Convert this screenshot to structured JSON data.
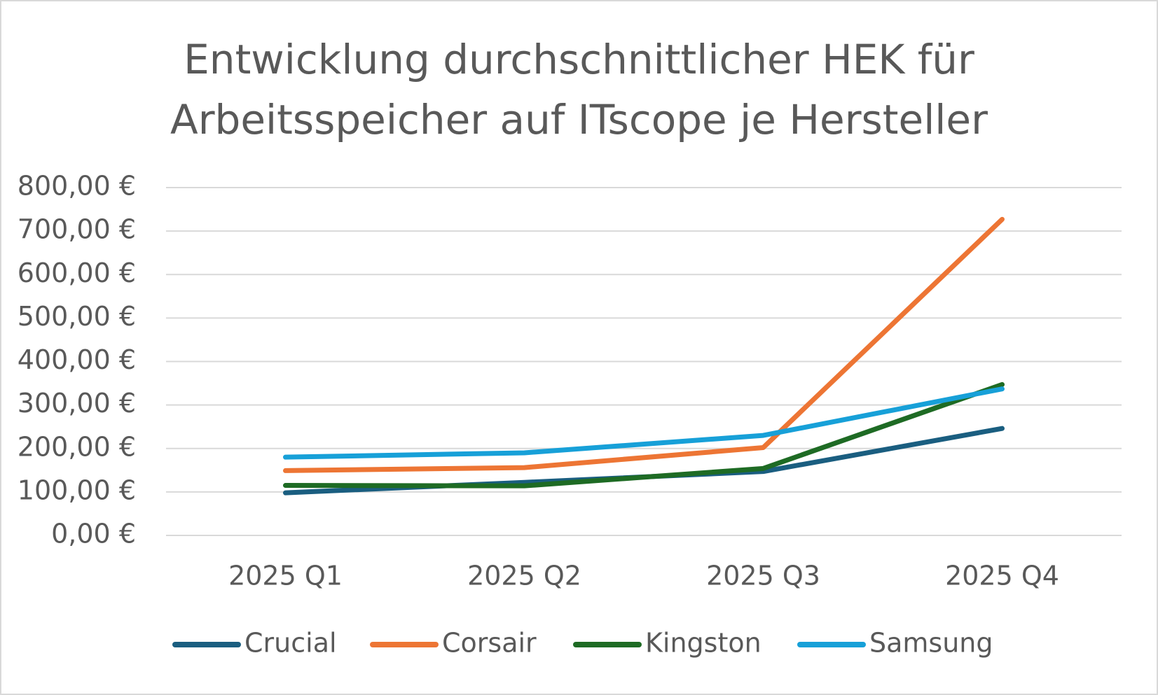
{
  "chart_data": {
    "type": "line",
    "title": "Entwicklung durchschnittlicher HEK für Arbeitsspeicher auf ITscope je Hersteller",
    "categories": [
      "2025 Q1",
      "2025 Q2",
      "2025 Q3",
      "2025 Q4"
    ],
    "series": [
      {
        "name": "Crucial",
        "color": "#1a5e80",
        "values": [
          98,
          122,
          147,
          246
        ]
      },
      {
        "name": "Corsair",
        "color": "#ed7534",
        "values": [
          149,
          156,
          202,
          727
        ]
      },
      {
        "name": "Kingston",
        "color": "#1e6b24",
        "values": [
          115,
          114,
          154,
          347
        ]
      },
      {
        "name": "Samsung",
        "color": "#17a0d8",
        "values": [
          180,
          190,
          230,
          337
        ]
      }
    ],
    "ylim": [
      0,
      800
    ],
    "yticks": [
      {
        "value": 0,
        "label": "0,00 €"
      },
      {
        "value": 100,
        "label": "100,00 €"
      },
      {
        "value": 200,
        "label": "200,00 €"
      },
      {
        "value": 300,
        "label": "300,00 €"
      },
      {
        "value": 400,
        "label": "400,00 €"
      },
      {
        "value": 500,
        "label": "500,00 €"
      },
      {
        "value": 600,
        "label": "600,00 €"
      },
      {
        "value": 700,
        "label": "700,00 €"
      },
      {
        "value": 800,
        "label": "800,00 €"
      }
    ],
    "grid": true,
    "legend": "bottom"
  }
}
